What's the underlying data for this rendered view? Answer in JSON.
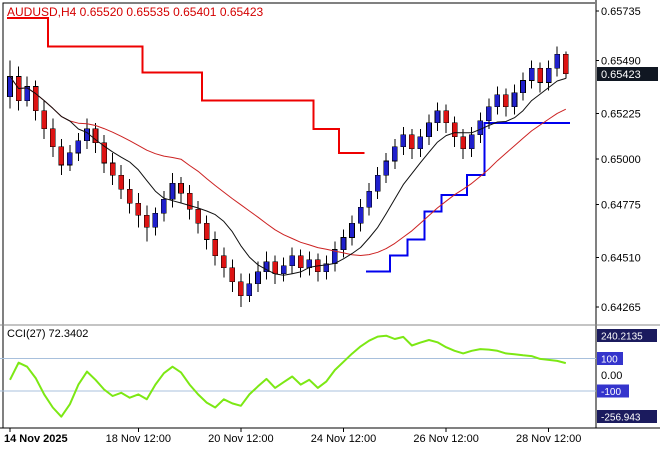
{
  "header": {
    "symbol_ohlc": "AUDUSD,H4 0.65520 0.65535 0.65401 0.65423"
  },
  "indicator": {
    "label": "CCI(27) 72.3402"
  },
  "colors": {
    "background": "#ffffff",
    "bull": "#2020cc",
    "bear": "#dd1414",
    "wick": "#000000",
    "trend_down_line": "#ee0000",
    "trend_up_line": "#0000ee",
    "ma_fast": "#101010",
    "ma_slow": "#cc2222",
    "cci_line": "#7ce814",
    "cci_level_line": "#a8c0dc",
    "header_text": "#d40000",
    "axis_text": "#000000",
    "price_tag_bg": "#101722",
    "price_tag_text": "#ffffff",
    "scale_tag_bg": "#1b1b5e",
    "level_tag_bg": "#3434cc"
  },
  "price_axis": {
    "labels": [
      {
        "text": "0.65735",
        "value": 0.65735
      },
      {
        "text": "0.65490",
        "value": 0.6549
      },
      {
        "text": "0.65225",
        "value": 0.65225
      },
      {
        "text": "0.65000",
        "value": 0.65
      },
      {
        "text": "0.64775",
        "value": 0.64775
      },
      {
        "text": "0.64510",
        "value": 0.6451
      },
      {
        "text": "0.64265",
        "value": 0.64265
      }
    ],
    "current": {
      "text": "0.65423",
      "value": 0.65423
    },
    "range": {
      "max": 0.6578,
      "min": 0.6418
    }
  },
  "cci_axis": {
    "labels": [
      {
        "text": "100",
        "value": 100,
        "style": "level"
      },
      {
        "text": "0.00",
        "value": 0,
        "style": "plain"
      },
      {
        "text": "-100",
        "value": -100,
        "style": "level"
      }
    ],
    "max_tag": {
      "text": "240.2135",
      "value": 240.2135
    },
    "min_tag": {
      "text": "-256.943",
      "value": -256.943
    },
    "range": {
      "max": 300,
      "min": -320
    }
  },
  "time_axis": {
    "labels": [
      {
        "text": "14 Nov 2025",
        "index": 0,
        "bold": true,
        "align": "start"
      },
      {
        "text": "18 Nov 12:00",
        "index": 15
      },
      {
        "text": "20 Nov 12:00",
        "index": 27
      },
      {
        "text": "24 Nov 12:00",
        "index": 39
      },
      {
        "text": "26 Nov 12:00",
        "index": 51
      },
      {
        "text": "28 Nov 12:00",
        "index": 63
      }
    ]
  },
  "chart_data": {
    "type": "candlestick",
    "title": "AUDUSD H4",
    "ylim": [
      0.6418,
      0.6578
    ],
    "ohlc": [
      [
        0.6531,
        0.6549,
        0.6525,
        0.6541
      ],
      [
        0.6541,
        0.6546,
        0.6524,
        0.6529
      ],
      [
        0.6529,
        0.6541,
        0.6526,
        0.6536
      ],
      [
        0.6536,
        0.6539,
        0.6519,
        0.6524
      ],
      [
        0.6524,
        0.6529,
        0.651,
        0.6515
      ],
      [
        0.6515,
        0.652,
        0.6501,
        0.6506
      ],
      [
        0.6506,
        0.651,
        0.6492,
        0.6497
      ],
      [
        0.6497,
        0.6507,
        0.6494,
        0.6503
      ],
      [
        0.6503,
        0.6513,
        0.6499,
        0.6509
      ],
      [
        0.6509,
        0.652,
        0.6505,
        0.6515
      ],
      [
        0.6515,
        0.6518,
        0.6503,
        0.6508
      ],
      [
        0.6508,
        0.6512,
        0.6493,
        0.6498
      ],
      [
        0.6498,
        0.6503,
        0.6487,
        0.6492
      ],
      [
        0.6492,
        0.6497,
        0.648,
        0.6485
      ],
      [
        0.6485,
        0.649,
        0.6473,
        0.6478
      ],
      [
        0.6478,
        0.6483,
        0.6466,
        0.6472
      ],
      [
        0.6472,
        0.6477,
        0.6459,
        0.6466
      ],
      [
        0.6466,
        0.6476,
        0.6462,
        0.6473
      ],
      [
        0.6473,
        0.6484,
        0.6469,
        0.648
      ],
      [
        0.648,
        0.6493,
        0.6476,
        0.6488
      ],
      [
        0.6488,
        0.6491,
        0.6478,
        0.6483
      ],
      [
        0.6483,
        0.6487,
        0.647,
        0.6475
      ],
      [
        0.6475,
        0.6479,
        0.6463,
        0.6468
      ],
      [
        0.6468,
        0.6472,
        0.6455,
        0.646
      ],
      [
        0.646,
        0.6464,
        0.6447,
        0.6452
      ],
      [
        0.6452,
        0.6456,
        0.6441,
        0.6446
      ],
      [
        0.6446,
        0.645,
        0.6434,
        0.6439
      ],
      [
        0.6439,
        0.6443,
        0.64265,
        0.6432
      ],
      [
        0.6432,
        0.6443,
        0.6429,
        0.6438
      ],
      [
        0.6438,
        0.6449,
        0.6434,
        0.6444
      ],
      [
        0.6444,
        0.6454,
        0.644,
        0.6449
      ],
      [
        0.6449,
        0.6452,
        0.6438,
        0.6443
      ],
      [
        0.6443,
        0.6451,
        0.6439,
        0.6447
      ],
      [
        0.6447,
        0.6456,
        0.6443,
        0.6452
      ],
      [
        0.6452,
        0.6455,
        0.6441,
        0.6446
      ],
      [
        0.6446,
        0.6454,
        0.6442,
        0.645
      ],
      [
        0.645,
        0.6453,
        0.6439,
        0.6444
      ],
      [
        0.6444,
        0.6452,
        0.644,
        0.6448
      ],
      [
        0.6448,
        0.6459,
        0.6444,
        0.6455
      ],
      [
        0.6455,
        0.6465,
        0.6451,
        0.6461
      ],
      [
        0.6461,
        0.6472,
        0.6457,
        0.6468
      ],
      [
        0.6468,
        0.648,
        0.6464,
        0.6476
      ],
      [
        0.6476,
        0.6488,
        0.6472,
        0.6484
      ],
      [
        0.6484,
        0.6496,
        0.648,
        0.6492
      ],
      [
        0.6492,
        0.6503,
        0.6488,
        0.6499
      ],
      [
        0.6499,
        0.651,
        0.6495,
        0.6506
      ],
      [
        0.6506,
        0.6516,
        0.6502,
        0.6512
      ],
      [
        0.6512,
        0.6515,
        0.65,
        0.6505
      ],
      [
        0.6505,
        0.6515,
        0.6501,
        0.6511
      ],
      [
        0.6511,
        0.6522,
        0.6507,
        0.6518
      ],
      [
        0.6518,
        0.6528,
        0.6514,
        0.6524
      ],
      [
        0.6524,
        0.6527,
        0.6513,
        0.6518
      ],
      [
        0.6518,
        0.6521,
        0.6506,
        0.6511
      ],
      [
        0.6511,
        0.6515,
        0.65,
        0.6505
      ],
      [
        0.6505,
        0.6516,
        0.6501,
        0.6512
      ],
      [
        0.6512,
        0.6523,
        0.6508,
        0.6519
      ],
      [
        0.6519,
        0.653,
        0.6515,
        0.6526
      ],
      [
        0.6526,
        0.6536,
        0.6522,
        0.6532
      ],
      [
        0.6532,
        0.6535,
        0.6521,
        0.6526
      ],
      [
        0.6526,
        0.6537,
        0.6522,
        0.6533
      ],
      [
        0.6533,
        0.6543,
        0.6529,
        0.6539
      ],
      [
        0.6539,
        0.6549,
        0.6535,
        0.6545
      ],
      [
        0.6545,
        0.6548,
        0.6533,
        0.6538
      ],
      [
        0.6538,
        0.6549,
        0.6534,
        0.6545
      ],
      [
        0.6545,
        0.6556,
        0.6541,
        0.6552
      ],
      [
        0.6552,
        0.65535,
        0.65401,
        0.65423
      ]
    ],
    "trend_segments_red": [
      [
        0,
        4,
        0.657
      ],
      [
        5,
        15,
        0.6556
      ],
      [
        16,
        22,
        0.6543
      ],
      [
        23,
        35,
        0.6529
      ],
      [
        36,
        38,
        0.6515
      ],
      [
        39,
        41,
        0.6503
      ]
    ],
    "trend_segments_blue": [
      [
        42,
        44,
        0.6444
      ],
      [
        45,
        46,
        0.6452
      ],
      [
        47,
        48,
        0.646
      ],
      [
        49,
        50,
        0.6474
      ],
      [
        51,
        53,
        0.6482
      ],
      [
        54,
        55,
        0.6492
      ],
      [
        56,
        65,
        0.6518
      ]
    ],
    "ma_periods": {
      "fast": 8,
      "slow": 21
    },
    "cci_levels": [
      100,
      -100
    ],
    "cci_values": [
      -30,
      75,
      50,
      -20,
      -120,
      -200,
      -256.943,
      -180,
      -60,
      20,
      -30,
      -90,
      -130,
      -110,
      -140,
      -120,
      -150,
      -60,
      10,
      50,
      15,
      -60,
      -120,
      -170,
      -200,
      -150,
      -175,
      -190,
      -120,
      -70,
      -25,
      -80,
      -45,
      -10,
      -60,
      -30,
      -80,
      -40,
      30,
      80,
      130,
      175,
      210,
      235,
      240.2135,
      220,
      233,
      180,
      198,
      214,
      200,
      170,
      148,
      132,
      148,
      158,
      155,
      148,
      132,
      126,
      120,
      115,
      98,
      92,
      86,
      72.3402
    ]
  }
}
